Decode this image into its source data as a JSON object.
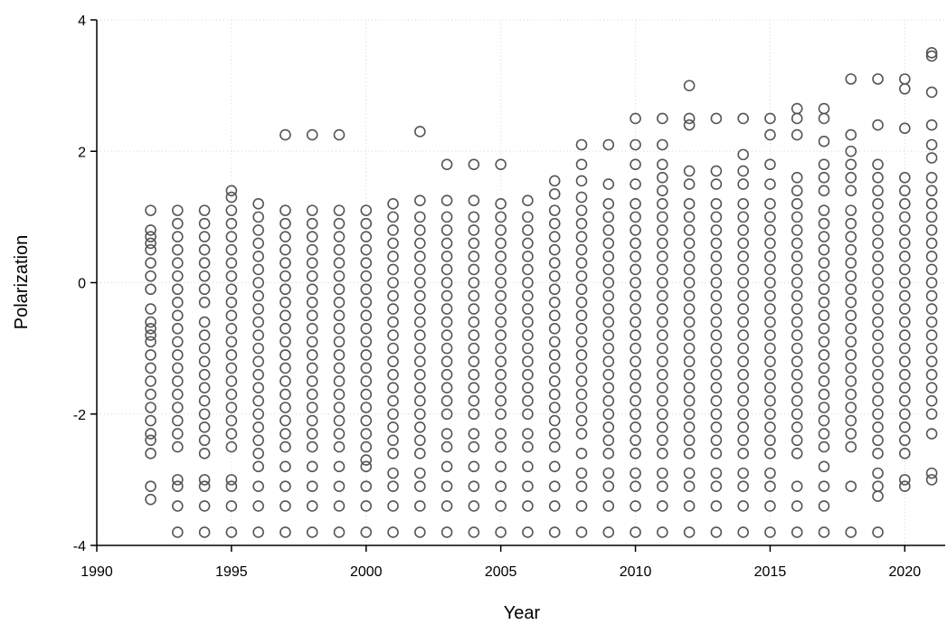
{
  "chart_data": {
    "type": "scatter",
    "title": "",
    "xlabel": "Year",
    "ylabel": "Polarization",
    "xlim": [
      1990,
      2021.5
    ],
    "ylim": [
      -4,
      4
    ],
    "xticks": [
      1990,
      1995,
      2000,
      2005,
      2010,
      2015,
      2020
    ],
    "yticks": [
      -4,
      -2,
      0,
      2,
      4
    ],
    "grid": true,
    "marker": "hollow-circle",
    "marker_color": "#555555",
    "legend": "none",
    "series": [
      {
        "x": 1992,
        "y": [
          1.1,
          0.8,
          0.7,
          0.6,
          0.5,
          0.3,
          0.1,
          -0.1,
          -0.4,
          -0.6,
          -0.7,
          -0.8,
          -0.9,
          -1.1,
          -1.3,
          -1.5,
          -1.7,
          -1.9,
          -2.1,
          -2.3,
          -2.4,
          -2.6,
          -3.1,
          -3.3
        ]
      },
      {
        "x": 1993,
        "y": [
          1.1,
          0.9,
          0.7,
          0.5,
          0.3,
          0.1,
          -0.1,
          -0.3,
          -0.5,
          -0.7,
          -0.9,
          -1.1,
          -1.3,
          -1.5,
          -1.7,
          -1.9,
          -2.1,
          -2.3,
          -2.5,
          -3.0,
          -3.1,
          -3.4,
          -3.8
        ]
      },
      {
        "x": 1994,
        "y": [
          1.1,
          0.9,
          0.7,
          0.5,
          0.3,
          0.1,
          -0.1,
          -0.3,
          -0.6,
          -0.8,
          -1.0,
          -1.2,
          -1.4,
          -1.6,
          -1.8,
          -2.0,
          -2.2,
          -2.4,
          -2.6,
          -3.0,
          -3.1,
          -3.4,
          -3.8
        ]
      },
      {
        "x": 1995,
        "y": [
          1.4,
          1.3,
          1.1,
          0.9,
          0.7,
          0.5,
          0.3,
          0.1,
          -0.1,
          -0.3,
          -0.5,
          -0.7,
          -0.9,
          -1.1,
          -1.3,
          -1.5,
          -1.7,
          -1.9,
          -2.1,
          -2.3,
          -2.5,
          -3.0,
          -3.1,
          -3.4,
          -3.8
        ]
      },
      {
        "x": 1996,
        "y": [
          1.2,
          1.0,
          0.8,
          0.6,
          0.4,
          0.2,
          0.0,
          -0.2,
          -0.4,
          -0.6,
          -0.8,
          -1.0,
          -1.2,
          -1.4,
          -1.6,
          -1.8,
          -2.0,
          -2.2,
          -2.4,
          -2.6,
          -2.8,
          -3.1,
          -3.4,
          -3.8
        ]
      },
      {
        "x": 1997,
        "y": [
          2.25,
          1.1,
          0.9,
          0.7,
          0.5,
          0.3,
          0.1,
          -0.1,
          -0.3,
          -0.5,
          -0.7,
          -0.9,
          -1.1,
          -1.3,
          -1.5,
          -1.7,
          -1.9,
          -2.1,
          -2.3,
          -2.5,
          -2.8,
          -3.1,
          -3.4,
          -3.8
        ]
      },
      {
        "x": 1998,
        "y": [
          2.25,
          1.1,
          0.9,
          0.7,
          0.5,
          0.3,
          0.1,
          -0.1,
          -0.3,
          -0.5,
          -0.7,
          -0.9,
          -1.1,
          -1.3,
          -1.5,
          -1.7,
          -1.9,
          -2.1,
          -2.3,
          -2.5,
          -2.8,
          -3.1,
          -3.4,
          -3.8
        ]
      },
      {
        "x": 1999,
        "y": [
          2.25,
          1.1,
          0.9,
          0.7,
          0.5,
          0.3,
          0.1,
          -0.1,
          -0.3,
          -0.5,
          -0.7,
          -0.9,
          -1.1,
          -1.3,
          -1.5,
          -1.7,
          -1.9,
          -2.1,
          -2.3,
          -2.5,
          -2.8,
          -3.1,
          -3.4,
          -3.8
        ]
      },
      {
        "x": 2000,
        "y": [
          1.1,
          0.9,
          0.7,
          0.5,
          0.3,
          0.1,
          -0.1,
          -0.3,
          -0.5,
          -0.7,
          -0.9,
          -1.1,
          -1.3,
          -1.5,
          -1.7,
          -1.9,
          -2.1,
          -2.3,
          -2.5,
          -2.7,
          -2.8,
          -3.1,
          -3.4,
          -3.8
        ]
      },
      {
        "x": 2001,
        "y": [
          1.2,
          1.0,
          0.8,
          0.6,
          0.4,
          0.2,
          0.0,
          -0.2,
          -0.4,
          -0.6,
          -0.8,
          -1.0,
          -1.2,
          -1.4,
          -1.6,
          -1.8,
          -2.0,
          -2.2,
          -2.4,
          -2.6,
          -2.9,
          -3.1,
          -3.4,
          -3.8
        ]
      },
      {
        "x": 2002,
        "y": [
          2.3,
          1.25,
          1.0,
          0.8,
          0.6,
          0.4,
          0.2,
          0.0,
          -0.2,
          -0.4,
          -0.6,
          -0.8,
          -1.0,
          -1.2,
          -1.4,
          -1.6,
          -1.8,
          -2.0,
          -2.2,
          -2.4,
          -2.6,
          -2.9,
          -3.1,
          -3.4,
          -3.8
        ]
      },
      {
        "x": 2003,
        "y": [
          1.8,
          1.25,
          1.0,
          0.8,
          0.6,
          0.4,
          0.2,
          0.0,
          -0.2,
          -0.4,
          -0.6,
          -0.8,
          -1.0,
          -1.2,
          -1.4,
          -1.6,
          -1.8,
          -2.0,
          -2.3,
          -2.5,
          -2.8,
          -3.1,
          -3.4,
          -3.8
        ]
      },
      {
        "x": 2004,
        "y": [
          1.8,
          1.25,
          1.0,
          0.8,
          0.6,
          0.4,
          0.2,
          0.0,
          -0.2,
          -0.4,
          -0.6,
          -0.8,
          -1.0,
          -1.2,
          -1.4,
          -1.6,
          -1.8,
          -2.0,
          -2.3,
          -2.5,
          -2.8,
          -3.1,
          -3.4,
          -3.8
        ]
      },
      {
        "x": 2005,
        "y": [
          1.8,
          1.2,
          1.0,
          0.8,
          0.6,
          0.4,
          0.2,
          0.0,
          -0.2,
          -0.4,
          -0.6,
          -0.8,
          -1.0,
          -1.2,
          -1.4,
          -1.6,
          -1.8,
          -2.0,
          -2.3,
          -2.5,
          -2.8,
          -3.1,
          -3.4,
          -3.8
        ]
      },
      {
        "x": 2006,
        "y": [
          1.25,
          1.0,
          0.8,
          0.6,
          0.4,
          0.2,
          0.0,
          -0.2,
          -0.4,
          -0.6,
          -0.8,
          -1.0,
          -1.2,
          -1.4,
          -1.6,
          -1.8,
          -2.0,
          -2.3,
          -2.5,
          -2.8,
          -3.1,
          -3.4,
          -3.8
        ]
      },
      {
        "x": 2007,
        "y": [
          1.55,
          1.35,
          1.1,
          0.9,
          0.7,
          0.5,
          0.3,
          0.1,
          -0.1,
          -0.3,
          -0.5,
          -0.7,
          -0.9,
          -1.1,
          -1.3,
          -1.5,
          -1.7,
          -1.9,
          -2.1,
          -2.3,
          -2.5,
          -2.8,
          -3.1,
          -3.4,
          -3.8
        ]
      },
      {
        "x": 2008,
        "y": [
          2.1,
          1.8,
          1.55,
          1.3,
          1.1,
          0.9,
          0.7,
          0.5,
          0.3,
          0.1,
          -0.1,
          -0.3,
          -0.5,
          -0.7,
          -0.9,
          -1.1,
          -1.3,
          -1.5,
          -1.7,
          -1.9,
          -2.1,
          -2.3,
          -2.6,
          -2.9,
          -3.1,
          -3.4,
          -3.8
        ]
      },
      {
        "x": 2009,
        "y": [
          2.1,
          1.5,
          1.2,
          1.0,
          0.8,
          0.6,
          0.4,
          0.2,
          0.0,
          -0.2,
          -0.4,
          -0.6,
          -0.8,
          -1.0,
          -1.2,
          -1.4,
          -1.6,
          -1.8,
          -2.0,
          -2.2,
          -2.4,
          -2.6,
          -2.9,
          -3.1,
          -3.4,
          -3.8
        ]
      },
      {
        "x": 2010,
        "y": [
          2.5,
          2.1,
          1.8,
          1.5,
          1.2,
          1.0,
          0.8,
          0.6,
          0.4,
          0.2,
          0.0,
          -0.2,
          -0.4,
          -0.6,
          -0.8,
          -1.0,
          -1.2,
          -1.4,
          -1.6,
          -1.8,
          -2.0,
          -2.2,
          -2.4,
          -2.6,
          -2.9,
          -3.1,
          -3.4,
          -3.8
        ]
      },
      {
        "x": 2011,
        "y": [
          2.5,
          2.1,
          1.8,
          1.6,
          1.4,
          1.2,
          1.0,
          0.8,
          0.6,
          0.4,
          0.2,
          0.0,
          -0.2,
          -0.4,
          -0.6,
          -0.8,
          -1.0,
          -1.2,
          -1.4,
          -1.6,
          -1.8,
          -2.0,
          -2.2,
          -2.4,
          -2.6,
          -2.9,
          -3.1,
          -3.4,
          -3.8
        ]
      },
      {
        "x": 2012,
        "y": [
          3.0,
          2.5,
          2.4,
          1.7,
          1.5,
          1.2,
          1.0,
          0.8,
          0.6,
          0.4,
          0.2,
          0.0,
          -0.2,
          -0.4,
          -0.6,
          -0.8,
          -1.0,
          -1.2,
          -1.4,
          -1.6,
          -1.8,
          -2.0,
          -2.2,
          -2.4,
          -2.6,
          -2.9,
          -3.1,
          -3.4,
          -3.8
        ]
      },
      {
        "x": 2013,
        "y": [
          2.5,
          1.7,
          1.5,
          1.2,
          1.0,
          0.8,
          0.6,
          0.4,
          0.2,
          0.0,
          -0.2,
          -0.4,
          -0.6,
          -0.8,
          -1.0,
          -1.2,
          -1.4,
          -1.6,
          -1.8,
          -2.0,
          -2.2,
          -2.4,
          -2.6,
          -2.9,
          -3.1,
          -3.4,
          -3.8
        ]
      },
      {
        "x": 2014,
        "y": [
          2.5,
          1.95,
          1.7,
          1.5,
          1.2,
          1.0,
          0.8,
          0.6,
          0.4,
          0.2,
          0.0,
          -0.2,
          -0.4,
          -0.6,
          -0.8,
          -1.0,
          -1.2,
          -1.4,
          -1.6,
          -1.8,
          -2.0,
          -2.2,
          -2.4,
          -2.6,
          -2.9,
          -3.1,
          -3.4,
          -3.8
        ]
      },
      {
        "x": 2015,
        "y": [
          2.5,
          2.25,
          1.8,
          1.5,
          1.2,
          1.0,
          0.8,
          0.6,
          0.4,
          0.2,
          0.0,
          -0.2,
          -0.4,
          -0.6,
          -0.8,
          -1.0,
          -1.2,
          -1.4,
          -1.6,
          -1.8,
          -2.0,
          -2.2,
          -2.4,
          -2.6,
          -2.9,
          -3.1,
          -3.4,
          -3.8
        ]
      },
      {
        "x": 2016,
        "y": [
          2.65,
          2.5,
          2.25,
          1.6,
          1.4,
          1.2,
          1.0,
          0.8,
          0.6,
          0.4,
          0.2,
          0.0,
          -0.2,
          -0.4,
          -0.6,
          -0.8,
          -1.0,
          -1.2,
          -1.4,
          -1.6,
          -1.8,
          -2.0,
          -2.2,
          -2.4,
          -2.6,
          -3.1,
          -3.4,
          -3.8
        ]
      },
      {
        "x": 2017,
        "y": [
          2.65,
          2.5,
          2.15,
          1.8,
          1.6,
          1.4,
          1.1,
          0.9,
          0.7,
          0.5,
          0.3,
          0.1,
          -0.1,
          -0.3,
          -0.5,
          -0.7,
          -0.9,
          -1.1,
          -1.3,
          -1.5,
          -1.7,
          -1.9,
          -2.1,
          -2.3,
          -2.5,
          -2.8,
          -3.1,
          -3.4,
          -3.8
        ]
      },
      {
        "x": 2018,
        "y": [
          3.1,
          2.25,
          2.0,
          1.8,
          1.6,
          1.4,
          1.1,
          0.9,
          0.7,
          0.5,
          0.3,
          0.1,
          -0.1,
          -0.3,
          -0.5,
          -0.7,
          -0.9,
          -1.1,
          -1.3,
          -1.5,
          -1.7,
          -1.9,
          -2.1,
          -2.3,
          -2.5,
          -3.1,
          -3.8
        ]
      },
      {
        "x": 2019,
        "y": [
          3.1,
          2.4,
          1.8,
          1.6,
          1.4,
          1.2,
          1.0,
          0.8,
          0.6,
          0.4,
          0.2,
          0.0,
          -0.2,
          -0.4,
          -0.6,
          -0.8,
          -1.0,
          -1.2,
          -1.4,
          -1.6,
          -1.8,
          -2.0,
          -2.2,
          -2.4,
          -2.6,
          -2.9,
          -3.1,
          -3.25,
          -3.8
        ]
      },
      {
        "x": 2020,
        "y": [
          3.1,
          2.95,
          2.35,
          1.6,
          1.4,
          1.2,
          1.0,
          0.8,
          0.6,
          0.4,
          0.2,
          0.0,
          -0.2,
          -0.4,
          -0.6,
          -0.8,
          -1.0,
          -1.2,
          -1.4,
          -1.6,
          -1.8,
          -2.0,
          -2.2,
          -2.4,
          -2.6,
          -3.0,
          -3.1
        ]
      },
      {
        "x": 2021,
        "y": [
          3.5,
          3.45,
          2.9,
          2.4,
          2.1,
          1.9,
          1.6,
          1.4,
          1.2,
          1.0,
          0.8,
          0.6,
          0.4,
          0.2,
          0.0,
          -0.2,
          -0.4,
          -0.6,
          -0.8,
          -1.0,
          -1.2,
          -1.4,
          -1.6,
          -1.8,
          -2.0,
          -2.3,
          -2.9,
          -3.0
        ]
      }
    ]
  }
}
